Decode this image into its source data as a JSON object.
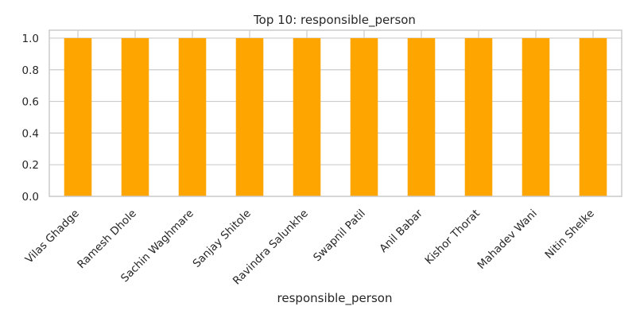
{
  "chart_data": {
    "type": "bar",
    "title": "Top 10: responsible_person",
    "xlabel": "responsible_person",
    "ylabel": "",
    "categories": [
      "Vilas Ghadge",
      "Ramesh Dhole",
      "Sachin Waghmare",
      "Sanjay Shitole",
      "Ravindra Salunkhe",
      "Swapnil Patil",
      "Anil Babar",
      "Kishor Thorat",
      "Mahadev Wani",
      "Nitin Shelke"
    ],
    "values": [
      1,
      1,
      1,
      1,
      1,
      1,
      1,
      1,
      1,
      1
    ],
    "ylim": [
      0,
      1.05
    ],
    "yticks": [
      "0.0",
      "0.2",
      "0.4",
      "0.6",
      "0.8",
      "1.0"
    ],
    "grid": true,
    "colors": {
      "bar": "#FFA500",
      "grid": "#cccccc",
      "axes": "#cccccc"
    }
  }
}
